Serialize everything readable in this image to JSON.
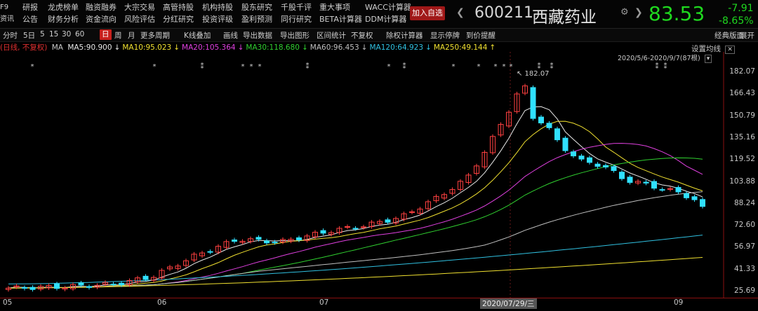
{
  "menu": {
    "f9": [
      "F9",
      "资讯"
    ],
    "cols": [
      [
        "研报",
        "公告"
      ],
      [
        "龙虎榜单",
        "财务分析"
      ],
      [
        "融资融券",
        "资金流向"
      ],
      [
        "大宗交易",
        "风险评估"
      ],
      [
        "高管持股",
        "分红研究"
      ],
      [
        "机构持股",
        "投资评级"
      ],
      [
        "股东研究",
        "盈利预测"
      ],
      [
        "千股千评",
        "同行研究"
      ],
      [
        "重大事项",
        "BETA计算器"
      ],
      [
        "WACC计算器",
        "DDM计算器"
      ]
    ]
  },
  "quote": {
    "add_favorite": "加入自选",
    "code": "600211",
    "name": "西藏药业",
    "price": "83.53",
    "change": "-7.91",
    "change_pct": "-8.65%"
  },
  "toolbar": {
    "items": [
      "分时",
      "5日",
      "5",
      "15",
      "30",
      "60",
      "日",
      "周",
      "月",
      "更多周期",
      "K线叠加",
      "画线",
      "导出数据",
      "导出图形",
      "区间统计",
      "不复权",
      "除权计算器",
      "显示停牌",
      "到价提醒"
    ],
    "right": [
      "经典版面",
      "展开"
    ]
  },
  "ma_legend": {
    "prefix": "(日线, 不复权)",
    "ma": "MA",
    "items": [
      {
        "label": "MA5:90.900",
        "color": "#e8e8e8"
      },
      {
        "label": "MA10:95.023",
        "color": "#f0e030"
      },
      {
        "label": "MA20:105.364",
        "color": "#e040e0"
      },
      {
        "label": "MA30:118.680",
        "color": "#30d030"
      },
      {
        "label": "MA60:96.453",
        "color": "#c0c0c0"
      },
      {
        "label": "MA120:64.923",
        "color": "#30c0e0"
      },
      {
        "label": "MA250:49.144",
        "color": "#f0e030"
      }
    ]
  },
  "chart_info": {
    "setting": "设置均线",
    "range": "2020/5/6-2020/9/7(87根)",
    "max_label": "182.07",
    "y_ticks": [
      "182.07",
      "166.43",
      "150.79",
      "135.16",
      "119.52",
      "103.88",
      "88.24",
      "72.60",
      "56.97",
      "41.33",
      "25.69"
    ],
    "x_ticks": [
      "05",
      "06",
      "07",
      "09"
    ],
    "x_highlight": "2020/07/29/三",
    "y_range": [
      25.69,
      182.07
    ]
  },
  "colors": {
    "up": "#ff4040",
    "down": "#30e0ff",
    "price_down": "#1fd81f",
    "add_fav": "#a01818"
  }
}
